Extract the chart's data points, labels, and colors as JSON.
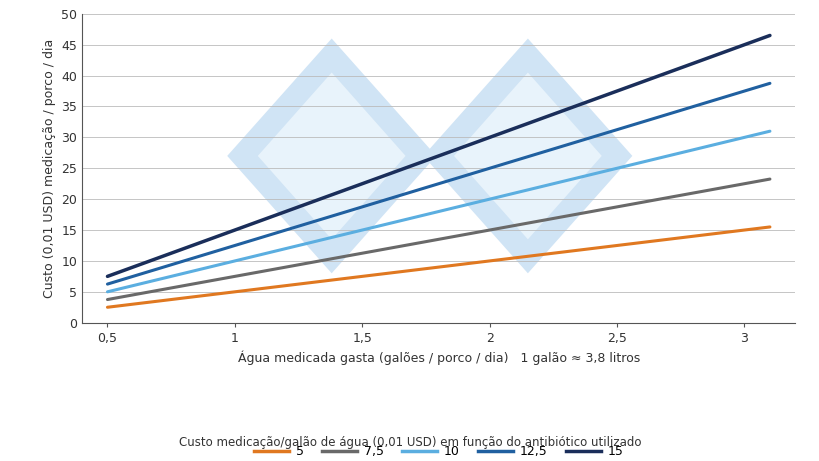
{
  "x_start": 0.5,
  "x_end": 3.1,
  "rates": [
    5,
    7.5,
    10,
    12.5,
    15
  ],
  "colors": [
    "#E07820",
    "#696969",
    "#5BAEE0",
    "#2060A0",
    "#1A2E5A"
  ],
  "line_widths": [
    2.2,
    2.2,
    2.2,
    2.2,
    2.5
  ],
  "xlabel_main": "Água medicada gasta (galões / porco / dia)",
  "xlabel_note": "   1 galão ≈ 3,8 litros",
  "ylabel": "Custo (0,01 USD) medicação / porco / dia",
  "xlim": [
    0.4,
    3.2
  ],
  "ylim": [
    0,
    50
  ],
  "xticks": [
    0.5,
    1.0,
    1.5,
    2.0,
    2.5,
    3.0
  ],
  "xtick_labels": [
    "0,5",
    "1",
    "1,5",
    "2",
    "2,5",
    "3"
  ],
  "yticks": [
    0,
    5,
    10,
    15,
    20,
    25,
    30,
    35,
    40,
    45,
    50
  ],
  "legend_labels": [
    "5",
    "7,5",
    "10",
    "12,5",
    "15"
  ],
  "legend_title": "Custo medicação/galão de água (0,01 USD) em função do antibiótico utilizado",
  "watermark_color": "#D0E4F5",
  "watermark_inner_color": "#E8F3FB",
  "background_color": "#FFFFFF",
  "grid_color": "#BBBBBB",
  "font_color": "#333333",
  "spine_color": "#555555"
}
